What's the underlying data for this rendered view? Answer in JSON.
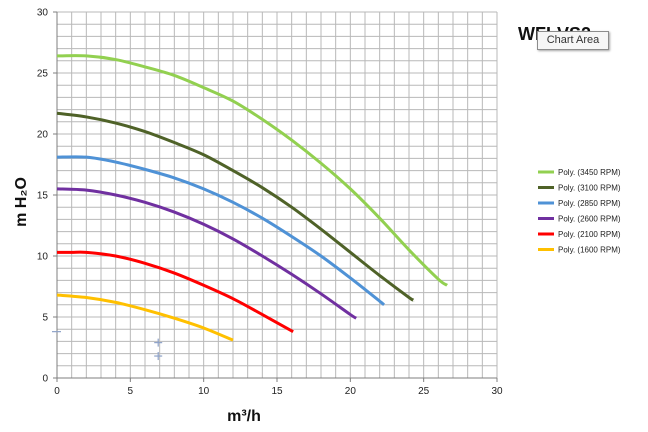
{
  "chart_data": {
    "type": "line",
    "title": "WFI-VS2",
    "xlabel": "m³/h",
    "ylabel": "m H₂O",
    "xlim": [
      0,
      30
    ],
    "ylim": [
      0,
      30
    ],
    "x_ticks": [
      0,
      5,
      10,
      15,
      20,
      25,
      30
    ],
    "y_ticks": [
      0,
      5,
      10,
      15,
      20,
      25,
      30
    ],
    "grid": true,
    "legend_position": "right",
    "series": [
      {
        "name": "Poly. (3450 RPM)",
        "color": "#92d050",
        "x": [
          0,
          2,
          4,
          6,
          8,
          10,
          12,
          14,
          16,
          18,
          20,
          22,
          24,
          26,
          26.6
        ],
        "y": [
          26.4,
          26.4,
          26.1,
          25.5,
          24.8,
          23.8,
          22.7,
          21.2,
          19.5,
          17.6,
          15.5,
          13.1,
          10.5,
          8.1,
          7.6
        ]
      },
      {
        "name": "Poly. (3100 RPM)",
        "color": "#4f6228",
        "x": [
          0,
          2,
          4,
          6,
          8,
          10,
          12,
          14,
          16,
          18,
          20,
          22,
          24,
          24.3
        ],
        "y": [
          21.7,
          21.4,
          20.9,
          20.2,
          19.3,
          18.3,
          17.0,
          15.6,
          14.0,
          12.2,
          10.3,
          8.4,
          6.6,
          6.4
        ]
      },
      {
        "name": "Poly. (2850 RPM)",
        "color": "#4f92d6",
        "x": [
          0,
          2,
          4,
          6,
          8,
          10,
          12,
          14,
          16,
          18,
          20,
          22,
          22.3
        ],
        "y": [
          18.1,
          18.1,
          17.7,
          17.1,
          16.4,
          15.5,
          14.4,
          13.1,
          11.6,
          10.0,
          8.2,
          6.3,
          6.0
        ]
      },
      {
        "name": "Poly. (2600 RPM)",
        "color": "#7030a0",
        "x": [
          0,
          2,
          4,
          6,
          8,
          10,
          12,
          14,
          16,
          18,
          20,
          20.4
        ],
        "y": [
          15.5,
          15.4,
          15.0,
          14.4,
          13.6,
          12.6,
          11.4,
          10.0,
          8.5,
          6.9,
          5.2,
          4.9
        ]
      },
      {
        "name": "Poly. (2100 RPM)",
        "color": "#ff0000",
        "x": [
          0,
          1,
          2,
          4,
          6,
          8,
          10,
          12,
          14,
          16.1
        ],
        "y": [
          10.3,
          10.3,
          10.3,
          10.0,
          9.4,
          8.6,
          7.6,
          6.5,
          5.2,
          3.8
        ]
      },
      {
        "name": "Poly. (1600 RPM)",
        "color": "#ffc000",
        "x": [
          0,
          2,
          4,
          6,
          8,
          10,
          12
        ],
        "y": [
          6.8,
          6.6,
          6.2,
          5.6,
          4.9,
          4.1,
          3.1
        ]
      }
    ],
    "markers": [
      {
        "x": 0,
        "y": 3.8,
        "symbol": "dash"
      },
      {
        "x": 6.9,
        "y": 2.9,
        "symbol": "plus"
      },
      {
        "x": 6.9,
        "y": 1.8,
        "symbol": "plus"
      }
    ]
  },
  "tooltip": {
    "label": "Chart Area"
  }
}
